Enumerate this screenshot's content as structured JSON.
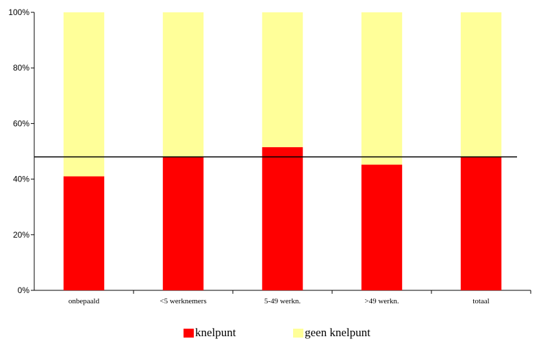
{
  "chart_data": {
    "type": "bar",
    "stacked": true,
    "percent_stacked": true,
    "categories": [
      "onbepaald",
      "<5 werknemers",
      "5-49 werkn.",
      ">49 werkn.",
      "totaal"
    ],
    "series": [
      {
        "name": "knelpunt",
        "values": [
          41,
          48,
          51.5,
          45.2,
          48
        ],
        "color": "#ff0000"
      },
      {
        "name": "geen knelpunt",
        "values": [
          59,
          52,
          48.5,
          54.8,
          52
        ],
        "color": "#ffff99"
      }
    ],
    "reference_line": {
      "value": 48,
      "color": "#000000"
    },
    "yticks": [
      "0%",
      "20%",
      "40%",
      "60%",
      "80%",
      "100%"
    ],
    "ylim": [
      0,
      100
    ],
    "grid": false,
    "legend_position": "bottom"
  }
}
